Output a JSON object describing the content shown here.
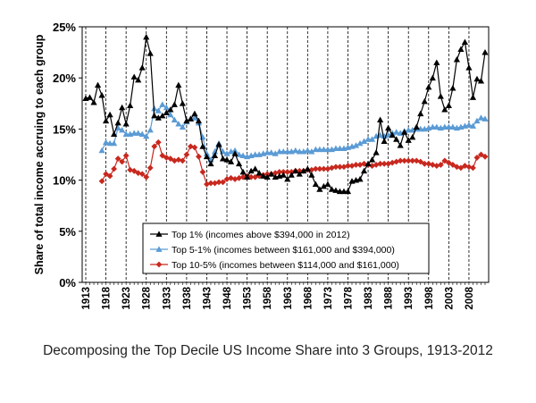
{
  "chart_data": {
    "type": "line",
    "title": "",
    "caption": "Decomposing the Top Decile US Income Share into 3 Groups, 1913-2012",
    "xlabel": "",
    "ylabel": "Share of total income accruing to each group",
    "xlim": [
      1913,
      2012
    ],
    "ylim": [
      0,
      25
    ],
    "y_ticks": [
      "0%",
      "5%",
      "10%",
      "15%",
      "20%",
      "25%"
    ],
    "x_ticks": [
      "1913",
      "1918",
      "1923",
      "1928",
      "1933",
      "1938",
      "1943",
      "1948",
      "1953",
      "1958",
      "1963",
      "1968",
      "1973",
      "1978",
      "1983",
      "1988",
      "1993",
      "1998",
      "2003",
      "2008"
    ],
    "grid": "vertical dashed",
    "legend_position": "bottom-center",
    "series": [
      {
        "name": "Top 1% (incomes above $394,000 in 2012)",
        "color": "#000000",
        "marker": "triangle",
        "x": [
          1913,
          1914,
          1915,
          1916,
          1917,
          1918,
          1919,
          1920,
          1921,
          1922,
          1923,
          1924,
          1925,
          1926,
          1927,
          1928,
          1929,
          1930,
          1931,
          1932,
          1933,
          1934,
          1935,
          1936,
          1937,
          1938,
          1939,
          1940,
          1941,
          1942,
          1943,
          1944,
          1945,
          1946,
          1947,
          1948,
          1949,
          1950,
          1951,
          1952,
          1953,
          1954,
          1955,
          1956,
          1957,
          1958,
          1959,
          1960,
          1961,
          1962,
          1963,
          1964,
          1965,
          1966,
          1967,
          1968,
          1969,
          1970,
          1971,
          1972,
          1973,
          1974,
          1975,
          1976,
          1977,
          1978,
          1979,
          1980,
          1981,
          1982,
          1983,
          1984,
          1985,
          1986,
          1987,
          1988,
          1989,
          1990,
          1991,
          1992,
          1993,
          1994,
          1995,
          1996,
          1997,
          1998,
          1999,
          2000,
          2001,
          2002,
          2003,
          2004,
          2005,
          2006,
          2007,
          2008,
          2009,
          2010,
          2011,
          2012
        ],
        "values": [
          18.0,
          18.1,
          17.6,
          19.3,
          18.3,
          15.8,
          16.4,
          14.5,
          15.6,
          17.1,
          15.5,
          17.3,
          20.1,
          19.8,
          21.0,
          24.0,
          22.4,
          16.3,
          16.1,
          16.3,
          16.6,
          16.9,
          17.4,
          19.3,
          17.5,
          15.8,
          16.0,
          16.5,
          15.8,
          13.3,
          12.3,
          11.6,
          12.4,
          13.5,
          12.1,
          12.0,
          11.8,
          12.6,
          11.6,
          10.8,
          10.3,
          10.9,
          11.1,
          10.7,
          10.4,
          10.3,
          10.6,
          10.3,
          10.4,
          10.5,
          10.1,
          10.5,
          10.9,
          10.6,
          10.9,
          11.1,
          10.5,
          9.6,
          9.1,
          9.4,
          9.6,
          9.1,
          9.0,
          8.9,
          8.9,
          8.9,
          9.9,
          10.0,
          10.1,
          10.9,
          11.6,
          12.0,
          12.7,
          15.9,
          13.8,
          15.1,
          14.4,
          14.0,
          13.4,
          14.7,
          13.9,
          14.2,
          15.2,
          16.5,
          17.7,
          19.1,
          20.0,
          21.5,
          18.2,
          16.9,
          17.3,
          19.0,
          21.8,
          22.8,
          23.5,
          21.0,
          18.1,
          19.9,
          19.7,
          22.5
        ]
      },
      {
        "name": "Top 5-1% (incomes between $161,000 and $394,000)",
        "color": "#5b9bd5",
        "marker": "triangle",
        "x": [
          1917,
          1918,
          1919,
          1920,
          1921,
          1922,
          1923,
          1924,
          1925,
          1926,
          1927,
          1928,
          1929,
          1930,
          1931,
          1932,
          1933,
          1934,
          1935,
          1936,
          1937,
          1938,
          1939,
          1940,
          1941,
          1942,
          1943,
          1944,
          1945,
          1946,
          1947,
          1948,
          1949,
          1950,
          1951,
          1952,
          1953,
          1954,
          1955,
          1956,
          1957,
          1958,
          1959,
          1960,
          1961,
          1962,
          1963,
          1964,
          1965,
          1966,
          1967,
          1968,
          1969,
          1970,
          1971,
          1972,
          1973,
          1974,
          1975,
          1976,
          1977,
          1978,
          1979,
          1980,
          1981,
          1982,
          1983,
          1984,
          1985,
          1986,
          1987,
          1988,
          1989,
          1990,
          1991,
          1992,
          1993,
          1994,
          1995,
          1996,
          1997,
          1998,
          1999,
          2000,
          2001,
          2002,
          2003,
          2004,
          2005,
          2006,
          2007,
          2008,
          2009,
          2010,
          2011,
          2012
        ],
        "values": [
          12.9,
          13.7,
          13.6,
          13.6,
          15.1,
          14.9,
          14.5,
          14.5,
          14.6,
          14.6,
          14.5,
          14.3,
          14.9,
          17.0,
          16.8,
          17.4,
          17.1,
          16.4,
          15.9,
          15.5,
          15.2,
          15.7,
          16.0,
          16.1,
          15.6,
          14.2,
          12.6,
          12.0,
          12.8,
          13.6,
          12.8,
          12.6,
          12.8,
          12.9,
          12.5,
          12.4,
          12.3,
          12.4,
          12.5,
          12.5,
          12.6,
          12.7,
          12.7,
          12.6,
          12.8,
          12.8,
          12.8,
          12.8,
          12.9,
          12.8,
          12.8,
          12.9,
          12.8,
          13.0,
          13.0,
          13.0,
          13.0,
          13.0,
          13.1,
          13.1,
          13.1,
          13.2,
          13.3,
          13.4,
          13.6,
          13.8,
          14.0,
          14.0,
          14.3,
          14.4,
          14.3,
          14.4,
          14.6,
          14.7,
          14.6,
          14.8,
          14.9,
          14.9,
          15.0,
          15.0,
          15.0,
          15.1,
          15.2,
          15.2,
          15.1,
          15.2,
          15.2,
          15.2,
          15.1,
          15.2,
          15.3,
          15.4,
          15.3,
          15.8,
          16.1,
          16.0
        ]
      },
      {
        "name": "Top 10-5% (incomes between $114,000 and $161,000)",
        "color": "#c8281e",
        "marker": "diamond",
        "x": [
          1917,
          1918,
          1919,
          1920,
          1921,
          1922,
          1923,
          1924,
          1925,
          1926,
          1927,
          1928,
          1929,
          1930,
          1931,
          1932,
          1933,
          1934,
          1935,
          1936,
          1937,
          1938,
          1939,
          1940,
          1941,
          1942,
          1943,
          1944,
          1945,
          1946,
          1947,
          1948,
          1949,
          1950,
          1951,
          1952,
          1953,
          1954,
          1955,
          1956,
          1957,
          1958,
          1959,
          1960,
          1961,
          1962,
          1963,
          1964,
          1965,
          1966,
          1967,
          1968,
          1969,
          1970,
          1971,
          1972,
          1973,
          1974,
          1975,
          1976,
          1977,
          1978,
          1979,
          1980,
          1981,
          1982,
          1983,
          1984,
          1985,
          1986,
          1987,
          1988,
          1989,
          1990,
          1991,
          1992,
          1993,
          1994,
          1995,
          1996,
          1997,
          1998,
          1999,
          2000,
          2001,
          2002,
          2003,
          2004,
          2005,
          2006,
          2007,
          2008,
          2009,
          2010,
          2011,
          2012
        ],
        "values": [
          9.9,
          10.6,
          10.4,
          11.1,
          12.1,
          11.8,
          12.4,
          11.0,
          10.9,
          10.7,
          10.6,
          10.3,
          11.2,
          13.3,
          13.7,
          12.4,
          12.2,
          12.1,
          11.9,
          12.0,
          11.9,
          12.5,
          13.3,
          13.2,
          12.3,
          10.8,
          9.6,
          9.7,
          9.7,
          9.8,
          9.8,
          10.1,
          10.2,
          10.1,
          10.2,
          10.3,
          10.4,
          10.3,
          10.3,
          10.4,
          10.5,
          10.6,
          10.6,
          10.7,
          10.8,
          10.8,
          10.8,
          10.8,
          10.9,
          10.9,
          10.9,
          11.0,
          11.0,
          11.1,
          11.1,
          11.1,
          11.1,
          11.2,
          11.3,
          11.3,
          11.3,
          11.4,
          11.4,
          11.5,
          11.5,
          11.6,
          11.5,
          11.4,
          11.5,
          11.6,
          11.6,
          11.6,
          11.7,
          11.8,
          11.9,
          11.9,
          11.9,
          11.9,
          11.9,
          11.8,
          11.6,
          11.6,
          11.5,
          11.4,
          11.5,
          11.9,
          11.7,
          11.5,
          11.3,
          11.2,
          11.4,
          11.3,
          11.2,
          12.2,
          12.5,
          12.3
        ]
      }
    ]
  }
}
